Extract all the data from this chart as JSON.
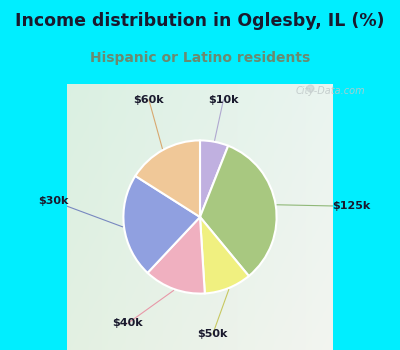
{
  "title": "Income distribution in Oglesby, IL (%)",
  "subtitle": "Hispanic or Latino residents",
  "labels": [
    "$10k",
    "$125k",
    "$50k",
    "$40k",
    "$30k",
    "$60k"
  ],
  "sizes": [
    6,
    33,
    10,
    13,
    22,
    16
  ],
  "colors": [
    "#c0b0e0",
    "#a8c880",
    "#f0f080",
    "#f0b0c0",
    "#90a0e0",
    "#f0c898"
  ],
  "bg_top": "#00eeff",
  "bg_chart_tl": "#d8f0e0",
  "bg_chart_br": "#f0f8f8",
  "title_color": "#1a1a2e",
  "subtitle_color": "#6a8a70",
  "watermark": "City-Data.com",
  "label_color": "#1a1a2e",
  "line_colors": [
    "#b0a8d0",
    "#90b070",
    "#d0d070",
    "#e090a0",
    "#7090c8",
    "#e0b880"
  ]
}
